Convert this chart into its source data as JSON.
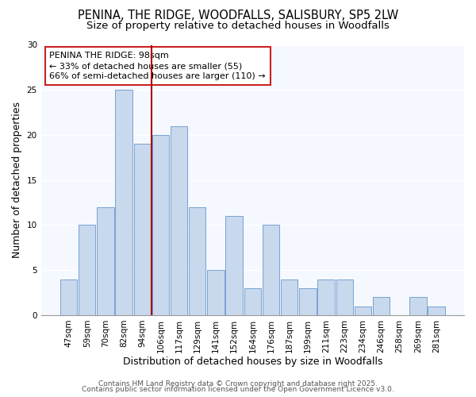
{
  "title_line1": "PENINA, THE RIDGE, WOODFALLS, SALISBURY, SP5 2LW",
  "title_line2": "Size of property relative to detached houses in Woodfalls",
  "xlabel": "Distribution of detached houses by size in Woodfalls",
  "ylabel": "Number of detached properties",
  "categories": [
    "47sqm",
    "59sqm",
    "70sqm",
    "82sqm",
    "94sqm",
    "106sqm",
    "117sqm",
    "129sqm",
    "141sqm",
    "152sqm",
    "164sqm",
    "176sqm",
    "187sqm",
    "199sqm",
    "211sqm",
    "223sqm",
    "234sqm",
    "246sqm",
    "258sqm",
    "269sqm",
    "281sqm"
  ],
  "values": [
    4,
    10,
    12,
    25,
    19,
    20,
    21,
    12,
    5,
    11,
    3,
    10,
    4,
    3,
    4,
    4,
    1,
    2,
    0,
    2,
    1
  ],
  "bar_color": "#c8d8ed",
  "bar_edge_color": "#6699cc",
  "vline_x_index": 4,
  "vline_color": "#aa0000",
  "annotation_title": "PENINA THE RIDGE: 98sqm",
  "annotation_line2": "← 33% of detached houses are smaller (55)",
  "annotation_line3": "66% of semi-detached houses are larger (110) →",
  "annotation_box_facecolor": "#ffffff",
  "annotation_box_edgecolor": "#cc2222",
  "footer_line1": "Contains HM Land Registry data © Crown copyright and database right 2025.",
  "footer_line2": "Contains public sector information licensed under the Open Government Licence v3.0.",
  "ylim": [
    0,
    30
  ],
  "yticks": [
    0,
    5,
    10,
    15,
    20,
    25,
    30
  ],
  "background_color": "#ffffff",
  "plot_bg_color": "#f5f8ff",
  "grid_color": "#ffffff",
  "title_fontsize": 10.5,
  "subtitle_fontsize": 9.5,
  "axis_label_fontsize": 9,
  "tick_fontsize": 7.5,
  "footer_fontsize": 6.5,
  "annotation_fontsize": 8
}
